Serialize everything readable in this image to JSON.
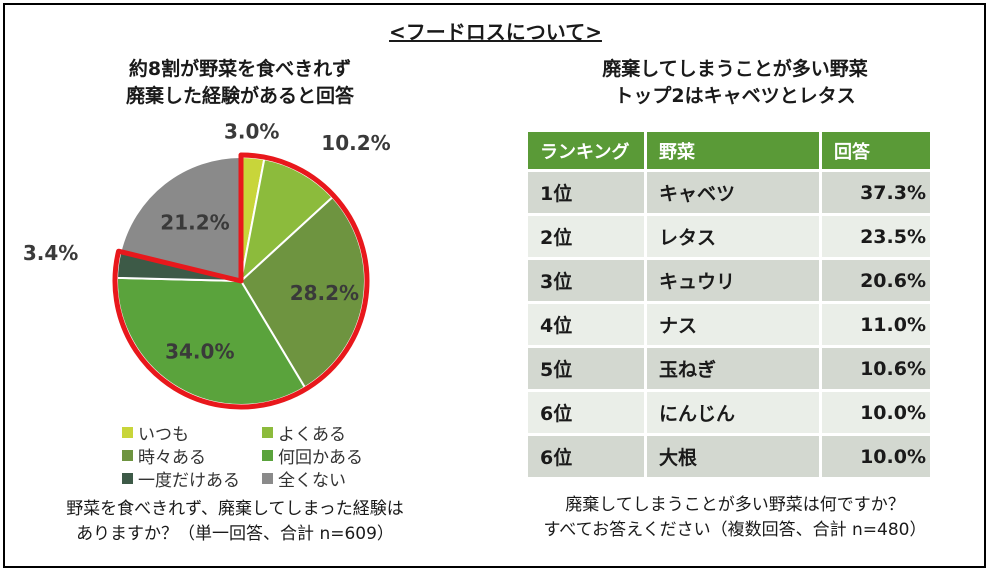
{
  "header": {
    "title": "<フードロスについて>"
  },
  "left_chart": {
    "title_line1": "約8割が野菜を食べきれず",
    "title_line2": "廃棄した経験があると回答",
    "caption_line1": "野菜を食べきれず、廃棄してしまった経験は",
    "caption_line2": "ありますか？（単一回答、合計 n=609）"
  },
  "right_chart": {
    "title_line1": "廃棄してしまうことが多い野菜",
    "title_line2": "トップ2はキャベツとレタス",
    "caption_line1": "廃棄してしまうことが多い野菜は何ですか？",
    "caption_line2": "すべてお答えください（複数回答、合計 n=480）"
  },
  "chart_data": [
    {
      "type": "pie",
      "title": "約8割が野菜を食べきれず 廃棄した経験があると回答",
      "categories": [
        "いつも",
        "よくある",
        "時々ある",
        "何回かある",
        "一度だけある",
        "全くない"
      ],
      "values": [
        3.0,
        10.2,
        28.2,
        34.0,
        3.4,
        21.2
      ],
      "labels": [
        "3.0%",
        "10.2%",
        "28.2%",
        "34.0%",
        "3.4%",
        "21.2%"
      ],
      "colors": [
        "#c8d53a",
        "#8cbb3c",
        "#6e9440",
        "#5aa33c",
        "#3d5a47",
        "#8a8a8a"
      ],
      "highlight_outline": "#e8181c",
      "legend": "bottom"
    },
    {
      "type": "table",
      "title": "廃棄してしまうことが多い野菜 トップ2はキャベツとレタス",
      "columns": [
        "ランキング",
        "野菜",
        "回答"
      ],
      "rows": [
        [
          "1位",
          "キャベツ",
          "37.3%"
        ],
        [
          "2位",
          "レタス",
          "23.5%"
        ],
        [
          "3位",
          "キュウリ",
          "20.6%"
        ],
        [
          "4位",
          "ナス",
          "11.0%"
        ],
        [
          "5位",
          "玉ねぎ",
          "10.6%"
        ],
        [
          "6位",
          "にんじん",
          "10.0%"
        ],
        [
          "6位",
          "大根",
          "10.0%"
        ]
      ],
      "header_color": "#5a9a37"
    }
  ]
}
